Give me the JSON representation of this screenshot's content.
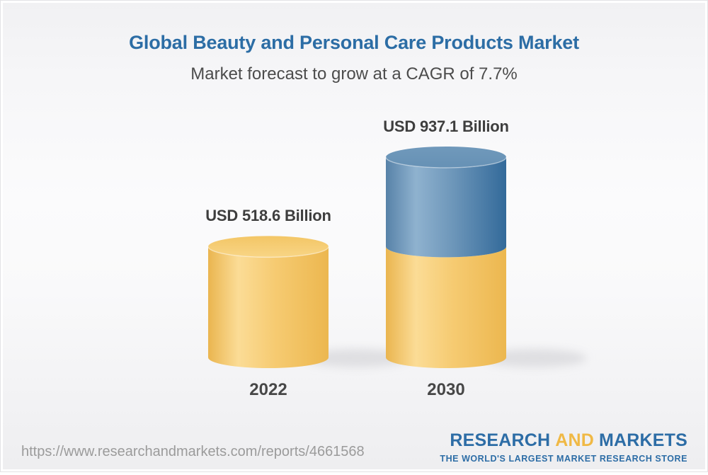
{
  "header": {
    "title": "Global Beauty and Personal Care Products Market",
    "subtitle": "Market forecast to grow at a CAGR of 7.7%",
    "title_color": "#2c6da5",
    "subtitle_color": "#4c4c4c"
  },
  "chart_data": {
    "type": "bar",
    "style": "3d-cylinder",
    "categories": [
      "2022",
      "2030"
    ],
    "values": [
      518.6,
      937.1
    ],
    "value_labels": [
      "USD 518.6 Billion",
      "USD 937.1 Billion"
    ],
    "unit": "USD Billion",
    "title": "Global Beauty and Personal Care Products Market",
    "subtitle": "Market forecast to grow at a CAGR of 7.7%",
    "cagr_percent": 7.7,
    "legend": "none",
    "grid": "off",
    "segment_colors": {
      "base_yellow": "#F5CA72",
      "growth_blue": "#6B96B9"
    },
    "note": "2030 cylinder is stacked: yellow lower segment equals the 2022 value (518.6), blue upper segment is the incremental growth to 937.1"
  },
  "footer": {
    "url": "https://www.researchandmarkets.com/reports/4661568",
    "logo": {
      "word1": "RESEARCH",
      "word2": "AND",
      "word3": "MARKETS",
      "tagline": "THE WORLD'S LARGEST MARKET RESEARCH STORE",
      "blue": "#2d6da6",
      "gold": "#f0b945"
    }
  }
}
